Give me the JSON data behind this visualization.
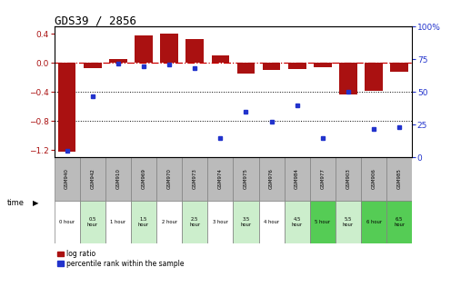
{
  "title": "GDS39 / 2856",
  "samples": [
    "GSM940",
    "GSM942",
    "GSM910",
    "GSM969",
    "GSM970",
    "GSM973",
    "GSM974",
    "GSM975",
    "GSM976",
    "GSM984",
    "GSM977",
    "GSM903",
    "GSM906",
    "GSM985"
  ],
  "times": [
    "0 hour",
    "0.5\nhour",
    "1 hour",
    "1.5\nhour",
    "2 hour",
    "2.5\nhour",
    "3 hour",
    "3.5\nhour",
    "4 hour",
    "4.5\nhour",
    "5 hour",
    "5.5\nhour",
    "6 hour",
    "6.5\nhour"
  ],
  "log_ratio": [
    -1.22,
    -0.07,
    0.06,
    0.38,
    0.4,
    0.33,
    0.1,
    -0.14,
    -0.1,
    -0.08,
    -0.06,
    -0.43,
    -0.38,
    -0.12
  ],
  "percentile": [
    5,
    47,
    72,
    70,
    71,
    68,
    15,
    35,
    27,
    40,
    15,
    50,
    22,
    23
  ],
  "bar_color": "#AA1111",
  "dot_color": "#2233CC",
  "header_color": "#BBBBBB",
  "zero_line_color": "#CC0000",
  "ylim_left": [
    -1.3,
    0.5
  ],
  "ylim_right": [
    0,
    100
  ],
  "yticks_left": [
    -1.2,
    -0.8,
    -0.4,
    0.0,
    0.4
  ],
  "yticks_right": [
    0,
    25,
    50,
    75,
    100
  ],
  "hline_vals": [
    -0.4,
    -0.8
  ],
  "time_bg_colors": [
    "#FFFFFF",
    "#CCEECC",
    "#FFFFFF",
    "#CCEECC",
    "#FFFFFF",
    "#CCEECC",
    "#FFFFFF",
    "#CCEECC",
    "#FFFFFF",
    "#CCEECC",
    "#55CC55",
    "#CCEECC",
    "#55CC55",
    "#55CC55"
  ]
}
